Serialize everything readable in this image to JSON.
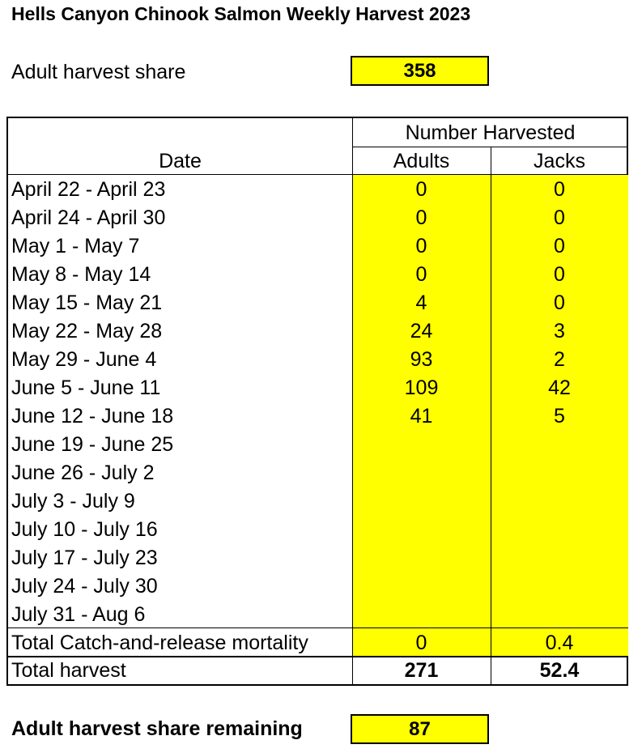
{
  "title": "Hells Canyon Chinook Salmon Weekly Harvest 2023",
  "adult_harvest_share": {
    "label": "Adult harvest share",
    "value": "358"
  },
  "table": {
    "group_header": "Number Harvested",
    "date_header": "Date",
    "adults_header": "Adults",
    "jacks_header": "Jacks",
    "rows": [
      {
        "date": "April 22 - April 23",
        "adults": "0",
        "jacks": "0"
      },
      {
        "date": "April 24 - April 30",
        "adults": "0",
        "jacks": "0"
      },
      {
        "date": "May 1 - May 7",
        "adults": "0",
        "jacks": "0"
      },
      {
        "date": "May 8 - May 14",
        "adults": "0",
        "jacks": "0"
      },
      {
        "date": "May 15 - May 21",
        "adults": "4",
        "jacks": "0"
      },
      {
        "date": "May 22 - May 28",
        "adults": "24",
        "jacks": "3"
      },
      {
        "date": "May 29 - June 4",
        "adults": "93",
        "jacks": "2"
      },
      {
        "date": "June 5 - June 11",
        "adults": "109",
        "jacks": "42"
      },
      {
        "date": "June 12 - June 18",
        "adults": "41",
        "jacks": "5"
      },
      {
        "date": "June 19 - June 25",
        "adults": "",
        "jacks": ""
      },
      {
        "date": "June 26 - July 2",
        "adults": "",
        "jacks": ""
      },
      {
        "date": "July 3 - July 9",
        "adults": "",
        "jacks": ""
      },
      {
        "date": "July 10 - July 16",
        "adults": "",
        "jacks": ""
      },
      {
        "date": "July 17 - July 23",
        "adults": "",
        "jacks": ""
      },
      {
        "date": "July 24 - July 30",
        "adults": "",
        "jacks": ""
      },
      {
        "date": "July 31 - Aug 6",
        "adults": "",
        "jacks": ""
      }
    ],
    "catch_release": {
      "label": "Total Catch-and-release mortality",
      "adults": "0",
      "jacks": "0.4"
    },
    "total": {
      "label": "Total harvest",
      "adults": "271",
      "jacks": "52.4"
    }
  },
  "adult_harvest_share_remaining": {
    "label": "Adult harvest share remaining",
    "value": "87"
  }
}
